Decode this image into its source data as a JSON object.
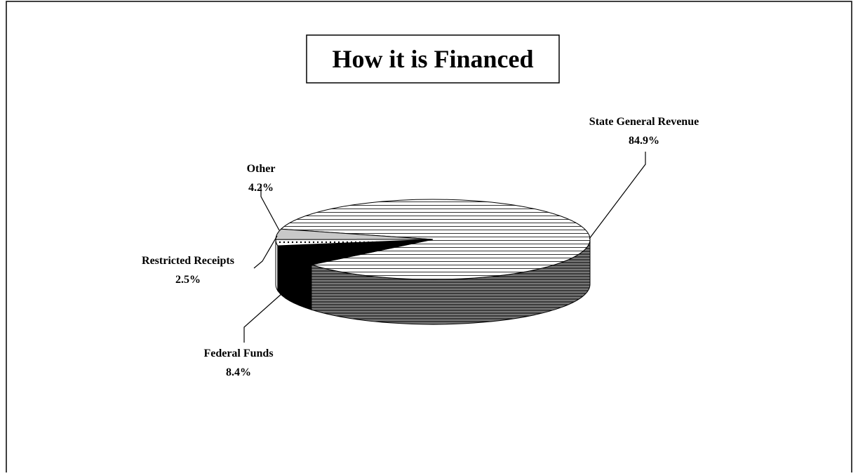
{
  "chart_data": {
    "type": "pie",
    "title": "How it is Financed",
    "categories": [
      "State General Revenue",
      "Federal Funds",
      "Restricted Receipts",
      "Other"
    ],
    "values": [
      84.9,
      8.4,
      2.5,
      4.2
    ],
    "value_labels": [
      "84.9%",
      "8.4%",
      "2.5%",
      "4.2%"
    ]
  }
}
